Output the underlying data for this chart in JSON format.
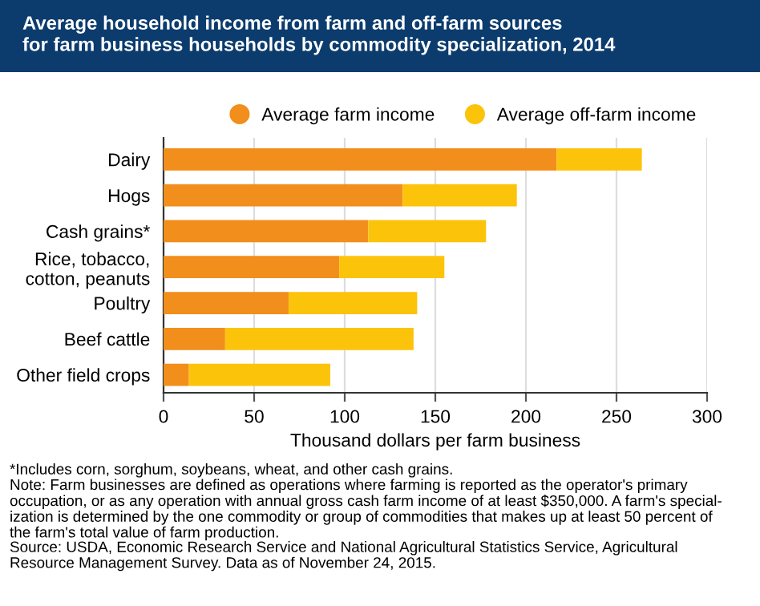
{
  "chart_data": {
    "type": "bar",
    "orientation": "horizontal",
    "stacked": true,
    "title": "Average household income from farm and off-farm sources\nfor farm business households by commodity specialization, 2014",
    "categories": [
      "Dairy",
      "Hogs",
      "Cash grains*",
      "Rice, tobacco,\ncotton, peanuts",
      "Poultry",
      "Beef cattle",
      "Other field crops"
    ],
    "series": [
      {
        "name": "Average farm income",
        "color": "#f28e1c",
        "values": [
          217,
          132,
          113,
          97,
          69,
          34,
          14
        ]
      },
      {
        "name": "Average off-farm income",
        "color": "#fcc30b",
        "values": [
          47,
          63,
          65,
          58,
          71,
          104,
          78
        ]
      }
    ],
    "xlim": [
      0,
      300
    ],
    "xticks": [
      0,
      50,
      100,
      150,
      200,
      250,
      300
    ],
    "xlabel": "Thousand dollars per farm business",
    "grid": "x",
    "legend": "top right",
    "annotations": [
      "*Includes corn, sorghum, soybeans, wheat, and other cash grains.",
      "Note: Farm businesses are defined as operations where farming is reported as the operator's primary\noccupation, or as any operation with annual gross cash farm income of at least $350,000. A farm's special-\nization is determined by the one commodity or group of commodities that makes up at least 50 percent of\nthe farm's total value of farm production.",
      "Source: USDA, Economic Research Service and National Agricultural Statistics Service, Agricultural\nResource Management Survey. Data as of November 24, 2015."
    ]
  }
}
